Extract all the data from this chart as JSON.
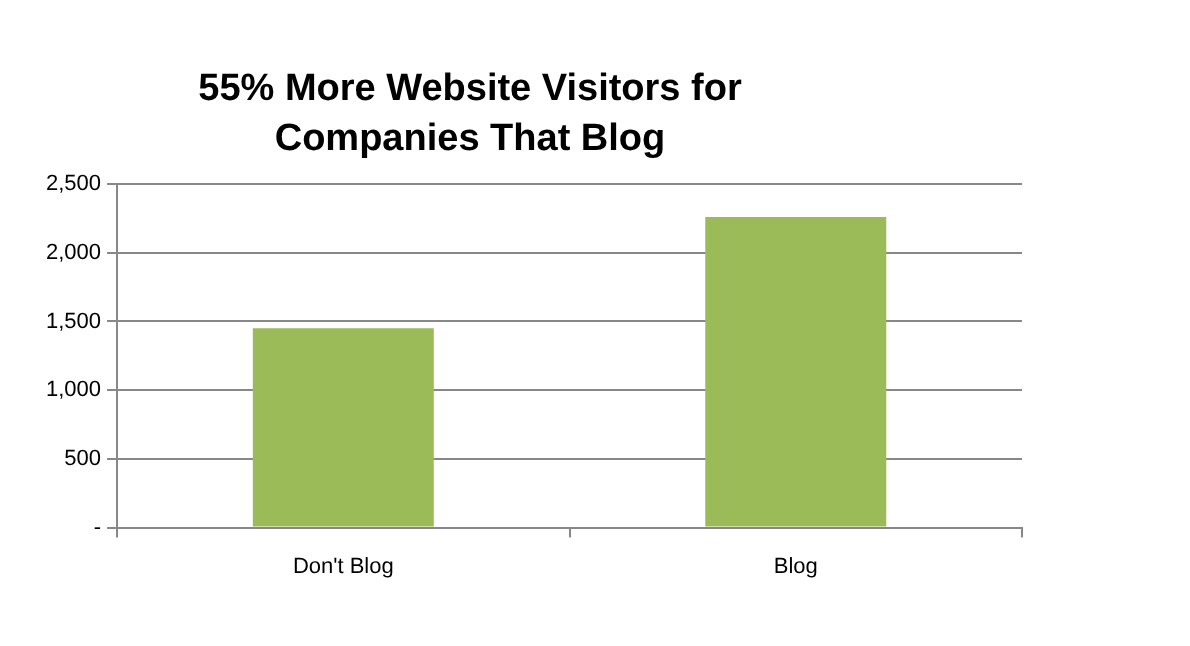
{
  "chart_data": {
    "type": "bar",
    "title": "55% More Website Visitors for Companies That Blog",
    "categories": [
      "Don't Blog",
      "Blog"
    ],
    "values": [
      1450,
      2260
    ],
    "color": "#9bbb59",
    "ylim": [
      0,
      2500
    ],
    "yticks": [
      {
        "value": 0,
        "label": "-"
      },
      500,
      {
        "value": 1000,
        "label": "1,000"
      },
      {
        "value": 1500,
        "label": "1,500"
      },
      {
        "value": 2000,
        "label": "2,000"
      },
      {
        "value": 2500,
        "label": "2,500"
      }
    ],
    "grid": "y",
    "legend": false
  }
}
